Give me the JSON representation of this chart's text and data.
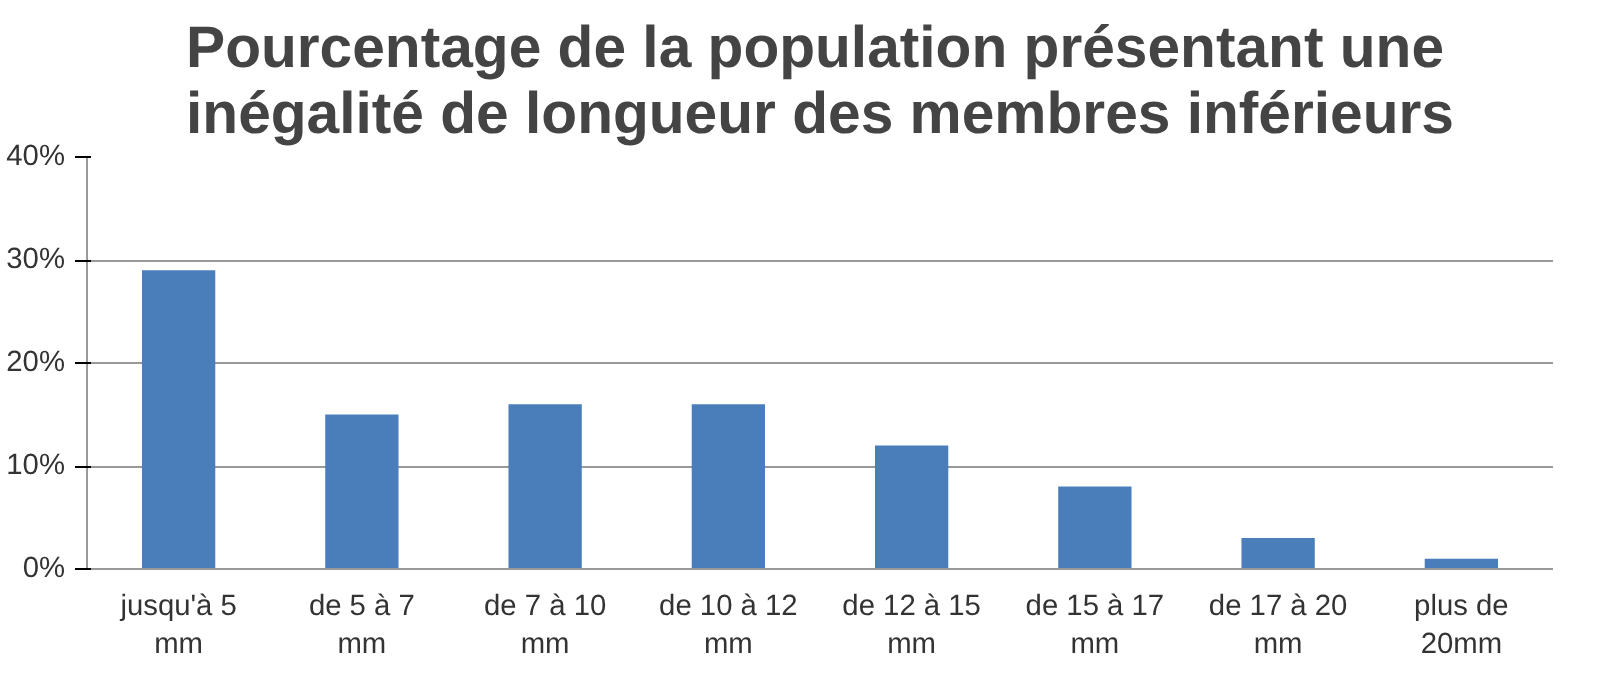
{
  "chart_data": {
    "type": "bar",
    "title": "Pourcentage de la population présentant une inégalité de longueur des membres inférieurs",
    "categories": [
      "jusqu'à 5 mm",
      "de 5 à 7 mm",
      "de 7 à 10 mm",
      "de 10 à 12 mm",
      "de 12 à 15 mm",
      "de 15 à 17 mm",
      "de 17 à 20 mm",
      "plus de 20mm"
    ],
    "values": [
      29,
      15,
      16,
      16,
      12,
      8,
      3,
      1
    ],
    "color": "#4a7ebb",
    "ylim": [
      0,
      40
    ],
    "yticks": [
      {
        "value": 0,
        "label": "0%"
      },
      {
        "value": 10,
        "label": "10%"
      },
      {
        "value": 20,
        "label": "20%"
      },
      {
        "value": 30,
        "label": "30%"
      },
      {
        "value": 40,
        "label": "40%"
      }
    ],
    "grid": "y"
  }
}
